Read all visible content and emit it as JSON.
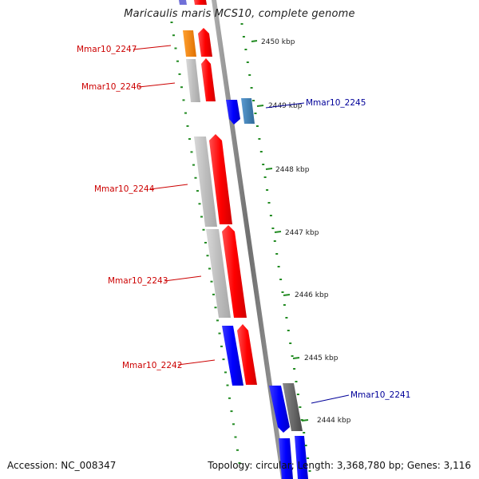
{
  "title": "Maricaulis maris MCS10, complete genome",
  "accession_label": "Accession:",
  "accession": "NC_008347",
  "topology_label": "Topology:",
  "topology": "circular",
  "length_label": "Length:",
  "length": "3,368,780 bp",
  "genes_label": "Genes:",
  "genes": "3,116",
  "colors": {
    "forward_gene": "#ff1a1a",
    "reverse_gene": "#1a1aff",
    "forward_label": "#cc0000",
    "reverse_label": "#000099",
    "gray_block": "#c8c8c8",
    "dark_gray_block": "#6e6e6e",
    "orange_block": "#ff8c00",
    "steel_block": "#4682b4",
    "tick_green": "#228b22",
    "backbone": "#8c8c8c"
  },
  "kbp_ticks": [
    "2450 kbp",
    "2449 kbp",
    "2448 kbp",
    "2447 kbp",
    "2446 kbp",
    "2445 kbp",
    "2444 kbp"
  ],
  "genes_shown": [
    {
      "id": "Mmar10_2247",
      "strand": "forward"
    },
    {
      "id": "Mmar10_2246",
      "strand": "forward"
    },
    {
      "id": "Mmar10_2245",
      "strand": "reverse"
    },
    {
      "id": "Mmar10_2244",
      "strand": "forward"
    },
    {
      "id": "Mmar10_2243",
      "strand": "forward"
    },
    {
      "id": "Mmar10_2242",
      "strand": "forward"
    },
    {
      "id": "Mmar10_2241",
      "strand": "reverse"
    }
  ]
}
